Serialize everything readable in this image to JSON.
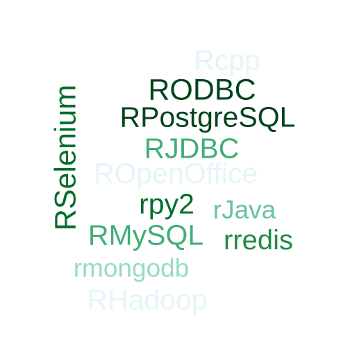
{
  "words": {
    "rcpp": {
      "text": "Rcpp",
      "color": "#e5f5f9"
    },
    "rodbc": {
      "text": "RODBC",
      "color": "#00441b"
    },
    "rpostgresql": {
      "text": "RPostgreSQL",
      "color": "#00441b"
    },
    "rjdbc": {
      "text": "RJDBC",
      "color": "#41ae76"
    },
    "ropenoffice": {
      "text": "ROpenOffice",
      "color": "#e5f5f9"
    },
    "rpy2": {
      "text": "rpy2",
      "color": "#006d2c"
    },
    "rjava": {
      "text": "rJava",
      "color": "#66c2a4"
    },
    "rmysql": {
      "text": "RMySQL",
      "color": "#41ae76"
    },
    "rredis": {
      "text": "rredis",
      "color": "#238b45"
    },
    "rmongodb": {
      "text": "rmongodb",
      "color": "#99d8c9"
    },
    "rhadoop": {
      "text": "RHadoop",
      "color": "#e5f5f9"
    },
    "rselenium": {
      "text": "RSelenium",
      "color": "#006d2c"
    }
  }
}
